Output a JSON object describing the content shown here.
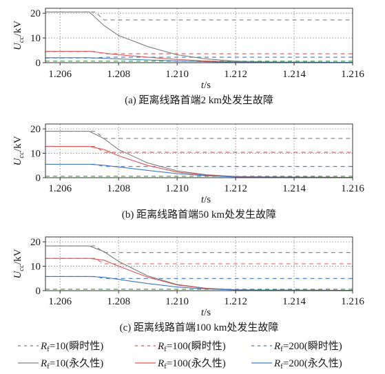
{
  "colors": {
    "perm_10": "#7f7f7f",
    "perm_100": "#e05555",
    "perm_200": "#3c78c8",
    "trans_10": "#7f7f7f",
    "trans_100": "#e05555",
    "trans_200": "#3c78c8",
    "green_ref": "#3a9a3a",
    "grid": "#9a9a9a"
  },
  "legend": {
    "rf_symbol": "R",
    "rf_sub": "f",
    "entries": [
      {
        "value_text": "=10(瞬时性)",
        "style": "dashed",
        "color_key": "trans_10"
      },
      {
        "value_text": "=100(瞬时性)",
        "style": "dashed",
        "color_key": "trans_100"
      },
      {
        "value_text": "=200(瞬时性)",
        "style": "dashed",
        "color_key": "trans_200"
      },
      {
        "value_text": "=10(永久性)",
        "style": "solid",
        "color_key": "perm_10"
      },
      {
        "value_text": "=100(永久性)",
        "style": "solid",
        "color_key": "perm_100"
      },
      {
        "value_text": "=200(永久性)",
        "style": "solid",
        "color_key": "perm_200"
      }
    ]
  },
  "chart_data": [
    {
      "type": "line",
      "caption": "(a) 距离线路首端2 km处发生故障",
      "ylabel_main": "U",
      "ylabel_sub": "cc",
      "ylabel_unit": "/kV",
      "xlabel_main": "t",
      "xlabel_unit": "/s",
      "xlim": [
        1.2055,
        1.216
      ],
      "ylim": [
        0,
        22
      ],
      "xticks": [
        "1.206",
        "1.208",
        "1.210",
        "1.212",
        "1.214",
        "1.216"
      ],
      "xtick_values": [
        1.206,
        1.208,
        1.21,
        1.212,
        1.214,
        1.216
      ],
      "yticks": [
        "0",
        "10",
        "20"
      ],
      "ytick_values": [
        0,
        10,
        20
      ],
      "grid": true,
      "series": [
        {
          "color_key": "trans_10",
          "style": "dashed",
          "x": [
            1.2055,
            1.2072,
            1.2075,
            1.216
          ],
          "y": [
            20.5,
            20.5,
            17.3,
            17.3
          ]
        },
        {
          "color_key": "trans_100",
          "style": "dashed",
          "x": [
            1.2055,
            1.2072,
            1.2075,
            1.216
          ],
          "y": [
            4.5,
            4.5,
            3.6,
            3.6
          ]
        },
        {
          "color_key": "trans_200",
          "style": "dashed",
          "x": [
            1.2055,
            1.2072,
            1.2075,
            1.216
          ],
          "y": [
            1.9,
            1.9,
            2.2,
            2.2
          ]
        },
        {
          "color_key": "green_ref",
          "style": "dashed",
          "x": [
            1.2055,
            1.216
          ],
          "y": [
            0.6,
            0.6
          ]
        },
        {
          "color_key": "perm_10",
          "style": "solid",
          "x": [
            1.2055,
            1.207,
            1.2075,
            1.208,
            1.209,
            1.21,
            1.211,
            1.212,
            1.2135,
            1.216
          ],
          "y": [
            20.5,
            20.5,
            15.0,
            11.0,
            6.5,
            3.2,
            1.5,
            0.6,
            0.2,
            0.1
          ]
        },
        {
          "color_key": "perm_100",
          "style": "solid",
          "x": [
            1.2055,
            1.207,
            1.2075,
            1.208,
            1.209,
            1.21,
            1.211,
            1.212,
            1.216
          ],
          "y": [
            4.6,
            4.6,
            3.9,
            3.2,
            2.2,
            1.3,
            0.7,
            0.3,
            0.1
          ]
        },
        {
          "color_key": "perm_200",
          "style": "solid",
          "x": [
            1.2055,
            1.207,
            1.208,
            1.209,
            1.21,
            1.211,
            1.212,
            1.216
          ],
          "y": [
            2.0,
            2.0,
            1.5,
            1.1,
            0.7,
            0.4,
            0.2,
            0.1
          ]
        }
      ]
    },
    {
      "type": "line",
      "caption": "(b) 距离线路首端50 km处发生故障",
      "ylabel_main": "U",
      "ylabel_sub": "cc",
      "ylabel_unit": "/kV",
      "xlabel_main": "t",
      "xlabel_unit": "/s",
      "xlim": [
        1.2055,
        1.216
      ],
      "ylim": [
        0,
        22
      ],
      "xticks": [
        "1.206",
        "1.208",
        "1.210",
        "1.212",
        "1.214",
        "1.216"
      ],
      "xtick_values": [
        1.206,
        1.208,
        1.21,
        1.212,
        1.214,
        1.216
      ],
      "yticks": [
        "0",
        "10",
        "20"
      ],
      "ytick_values": [
        0,
        10,
        20
      ],
      "grid": true,
      "series": [
        {
          "color_key": "trans_10",
          "style": "dashed",
          "x": [
            1.2055,
            1.2072,
            1.2075,
            1.216
          ],
          "y": [
            19.0,
            19.0,
            16.1,
            16.1
          ]
        },
        {
          "color_key": "trans_100",
          "style": "dashed",
          "x": [
            1.2055,
            1.2072,
            1.2075,
            1.216
          ],
          "y": [
            12.8,
            12.8,
            10.4,
            10.4
          ]
        },
        {
          "color_key": "trans_200",
          "style": "dashed",
          "x": [
            1.2055,
            1.2072,
            1.2075,
            1.216
          ],
          "y": [
            5.5,
            5.5,
            4.6,
            4.6
          ]
        },
        {
          "color_key": "green_ref",
          "style": "dashed",
          "x": [
            1.2055,
            1.216
          ],
          "y": [
            0.6,
            0.6
          ]
        },
        {
          "color_key": "perm_10",
          "style": "solid",
          "x": [
            1.2055,
            1.207,
            1.2075,
            1.208,
            1.209,
            1.21,
            1.211,
            1.212,
            1.2135,
            1.216
          ],
          "y": [
            19.0,
            19.0,
            16.0,
            11.5,
            6.0,
            2.8,
            1.2,
            0.5,
            0.2,
            0.1
          ]
        },
        {
          "color_key": "perm_100",
          "style": "solid",
          "x": [
            1.2055,
            1.207,
            1.2075,
            1.208,
            1.209,
            1.21,
            1.211,
            1.212,
            1.216
          ],
          "y": [
            12.8,
            12.8,
            11.5,
            9.0,
            5.0,
            2.3,
            1.0,
            0.4,
            0.1
          ]
        },
        {
          "color_key": "perm_200",
          "style": "solid",
          "x": [
            1.2055,
            1.207,
            1.2075,
            1.208,
            1.209,
            1.21,
            1.211,
            1.212,
            1.216
          ],
          "y": [
            5.5,
            5.5,
            5.1,
            4.4,
            3.0,
            1.7,
            0.8,
            0.3,
            0.1
          ]
        }
      ]
    },
    {
      "type": "line",
      "caption": "(c) 距离线路首端100 km处发生故障",
      "ylabel_main": "U",
      "ylabel_sub": "cc",
      "ylabel_unit": "/kV",
      "xlabel_main": "t",
      "xlabel_unit": "/s",
      "xlim": [
        1.2055,
        1.216
      ],
      "ylim": [
        0,
        22
      ],
      "xticks": [
        "1.206",
        "1.208",
        "1.210",
        "1.212",
        "1.214",
        "1.216"
      ],
      "xtick_values": [
        1.206,
        1.208,
        1.21,
        1.212,
        1.214,
        1.216
      ],
      "yticks": [
        "0",
        "10",
        "20"
      ],
      "ytick_values": [
        0,
        10,
        20
      ],
      "grid": true,
      "series": [
        {
          "color_key": "trans_10",
          "style": "dashed",
          "x": [
            1.2055,
            1.2072,
            1.2075,
            1.216
          ],
          "y": [
            18.3,
            18.3,
            15.6,
            15.6
          ]
        },
        {
          "color_key": "trans_100",
          "style": "dashed",
          "x": [
            1.2055,
            1.2072,
            1.2075,
            1.216
          ],
          "y": [
            13.2,
            13.2,
            11.0,
            11.0
          ]
        },
        {
          "color_key": "trans_200",
          "style": "dashed",
          "x": [
            1.2055,
            1.2072,
            1.2075,
            1.216
          ],
          "y": [
            5.8,
            5.8,
            5.0,
            5.0
          ]
        },
        {
          "color_key": "green_ref",
          "style": "dashed",
          "x": [
            1.2055,
            1.216
          ],
          "y": [
            0.6,
            0.6
          ]
        },
        {
          "color_key": "perm_10",
          "style": "solid",
          "x": [
            1.2055,
            1.207,
            1.2075,
            1.208,
            1.209,
            1.21,
            1.211,
            1.212,
            1.2135,
            1.216
          ],
          "y": [
            18.3,
            18.3,
            16.0,
            12.0,
            6.0,
            2.5,
            1.0,
            0.4,
            0.2,
            0.1
          ]
        },
        {
          "color_key": "perm_100",
          "style": "solid",
          "x": [
            1.2055,
            1.207,
            1.2075,
            1.208,
            1.209,
            1.21,
            1.211,
            1.212,
            1.216
          ],
          "y": [
            13.2,
            13.2,
            12.5,
            10.0,
            5.5,
            2.3,
            0.9,
            0.3,
            0.1
          ]
        },
        {
          "color_key": "perm_200",
          "style": "solid",
          "x": [
            1.2055,
            1.207,
            1.2075,
            1.208,
            1.209,
            1.21,
            1.211,
            1.212,
            1.216
          ],
          "y": [
            5.8,
            5.8,
            5.5,
            4.6,
            2.9,
            1.5,
            0.7,
            0.3,
            0.1
          ]
        }
      ]
    }
  ]
}
